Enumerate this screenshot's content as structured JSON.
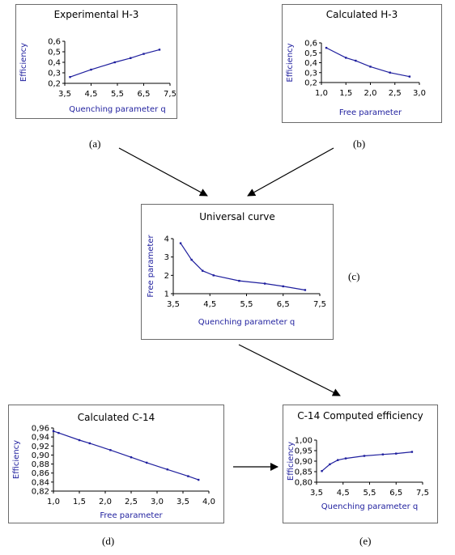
{
  "panels": {
    "a": {
      "title": "Experimental H-3",
      "label": "(a)",
      "chart_data": {
        "type": "line",
        "xlabel": "Quenching parameter q",
        "ylabel": "Efficiency",
        "x_ticks": [
          "3,5",
          "4,5",
          "5,5",
          "6,5",
          "7,5"
        ],
        "y_ticks": [
          "0,2",
          "0,3",
          "0,4",
          "0,5",
          "0,6"
        ],
        "xlim": [
          3.5,
          7.5
        ],
        "ylim": [
          0.2,
          0.6
        ],
        "series": [
          {
            "x": [
              3.7,
              4.5,
              5.4,
              6.0,
              6.5,
              7.1
            ],
            "y": [
              0.26,
              0.33,
              0.4,
              0.44,
              0.48,
              0.52
            ]
          }
        ],
        "color": "#1f1f9e"
      }
    },
    "b": {
      "title": "Calculated H-3",
      "label": "(b)",
      "chart_data": {
        "type": "line",
        "xlabel": "Free parameter",
        "ylabel": "Efficiency",
        "x_ticks": [
          "1,0",
          "1,5",
          "2,0",
          "2,5",
          "3,0"
        ],
        "y_ticks": [
          "0,2",
          "0,3",
          "0,4",
          "0,5",
          "0,6"
        ],
        "xlim": [
          1.0,
          3.0
        ],
        "ylim": [
          0.2,
          0.6
        ],
        "series": [
          {
            "x": [
              1.1,
              1.5,
              1.7,
              2.0,
              2.4,
              2.8
            ],
            "y": [
              0.55,
              0.45,
              0.42,
              0.36,
              0.3,
              0.26
            ]
          }
        ],
        "color": "#1f1f9e"
      }
    },
    "c": {
      "title": "Universal curve",
      "label": "(c)",
      "chart_data": {
        "type": "line",
        "xlabel": "Quenching parameter q",
        "ylabel": "Free parameter",
        "x_ticks": [
          "3,5",
          "4,5",
          "5,5",
          "6,5",
          "7,5"
        ],
        "y_ticks": [
          "1",
          "2",
          "3",
          "4"
        ],
        "xlim": [
          3.5,
          7.5
        ],
        "ylim": [
          1,
          4
        ],
        "series": [
          {
            "x": [
              3.7,
              4.0,
              4.3,
              4.6,
              5.3,
              6.0,
              6.5,
              7.1
            ],
            "y": [
              3.75,
              2.85,
              2.25,
              2.0,
              1.7,
              1.55,
              1.4,
              1.2
            ]
          }
        ],
        "color": "#1f1f9e"
      }
    },
    "d": {
      "title": "Calculated C-14",
      "label": "(d)",
      "chart_data": {
        "type": "line",
        "xlabel": "Free parameter",
        "ylabel": "Efficiency",
        "x_ticks": [
          "1,0",
          "1,5",
          "2,0",
          "2,5",
          "3,0",
          "3,5",
          "4,0"
        ],
        "y_ticks": [
          "0,82",
          "0,84",
          "0,86",
          "0,88",
          "0,90",
          "0,92",
          "0,94",
          "0,96"
        ],
        "xlim": [
          1.0,
          4.0
        ],
        "ylim": [
          0.82,
          0.96
        ],
        "series": [
          {
            "x": [
              1.0,
              1.1,
              1.5,
              1.7,
              2.1,
              2.5,
              2.8,
              3.2,
              3.6,
              3.8
            ],
            "y": [
              0.953,
              0.949,
              0.933,
              0.926,
              0.911,
              0.895,
              0.883,
              0.868,
              0.853,
              0.845
            ]
          }
        ],
        "color": "#1f1f9e"
      }
    },
    "e": {
      "title": "C-14 Computed efficiency",
      "label": "(e)",
      "chart_data": {
        "type": "line",
        "xlabel": "Quenching parameter q",
        "ylabel": "Efficiency",
        "x_ticks": [
          "3,5",
          "4,5",
          "5,5",
          "6,5",
          "7,5"
        ],
        "y_ticks": [
          "0,80",
          "0,85",
          "0,90",
          "0,95",
          "1,00"
        ],
        "xlim": [
          3.5,
          7.5
        ],
        "ylim": [
          0.8,
          1.0
        ],
        "series": [
          {
            "x": [
              3.7,
              4.0,
              4.3,
              4.6,
              5.3,
              6.0,
              6.5,
              7.1
            ],
            "y": [
              0.853,
              0.885,
              0.905,
              0.913,
              0.925,
              0.932,
              0.936,
              0.944
            ]
          }
        ],
        "color": "#1f1f9e"
      }
    }
  }
}
